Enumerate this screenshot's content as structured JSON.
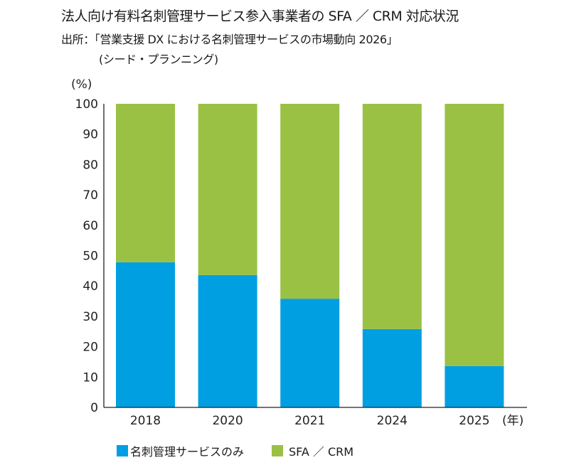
{
  "header": {
    "title": "法人向け有料名刺管理サービス参入事業者の SFA ／ CRM 対応状況",
    "source_line1": "出所：「営業支援 DX における名刺管理サービスの市場動向 2026」",
    "source_line2": "(シード・プランニング)"
  },
  "colors": {
    "card_only": "#009fe1",
    "sfa_crm": "#9ac144",
    "axis": "#222222"
  },
  "chart_data": {
    "type": "bar",
    "stacked": true,
    "title": "法人向け有料名刺管理サービス参入事業者の SFA ／ CRM 対応状況",
    "xlabel": "(年)",
    "ylabel": "(%)",
    "ylim": [
      0,
      100
    ],
    "yticks": [
      0,
      10,
      20,
      30,
      40,
      50,
      60,
      70,
      80,
      90,
      100
    ],
    "categories": [
      "2018",
      "2020",
      "2021",
      "2024",
      "2025"
    ],
    "series": [
      {
        "name": "名刺管理サービスのみ",
        "color": "#009fe1",
        "values": [
          47.8,
          43.6,
          35.8,
          25.8,
          13.6
        ]
      },
      {
        "name": "SFA ／ CRM",
        "color": "#9ac144",
        "values": [
          52.2,
          56.4,
          64.2,
          74.2,
          86.4
        ]
      }
    ],
    "legend_position": "bottom",
    "grid": false
  }
}
